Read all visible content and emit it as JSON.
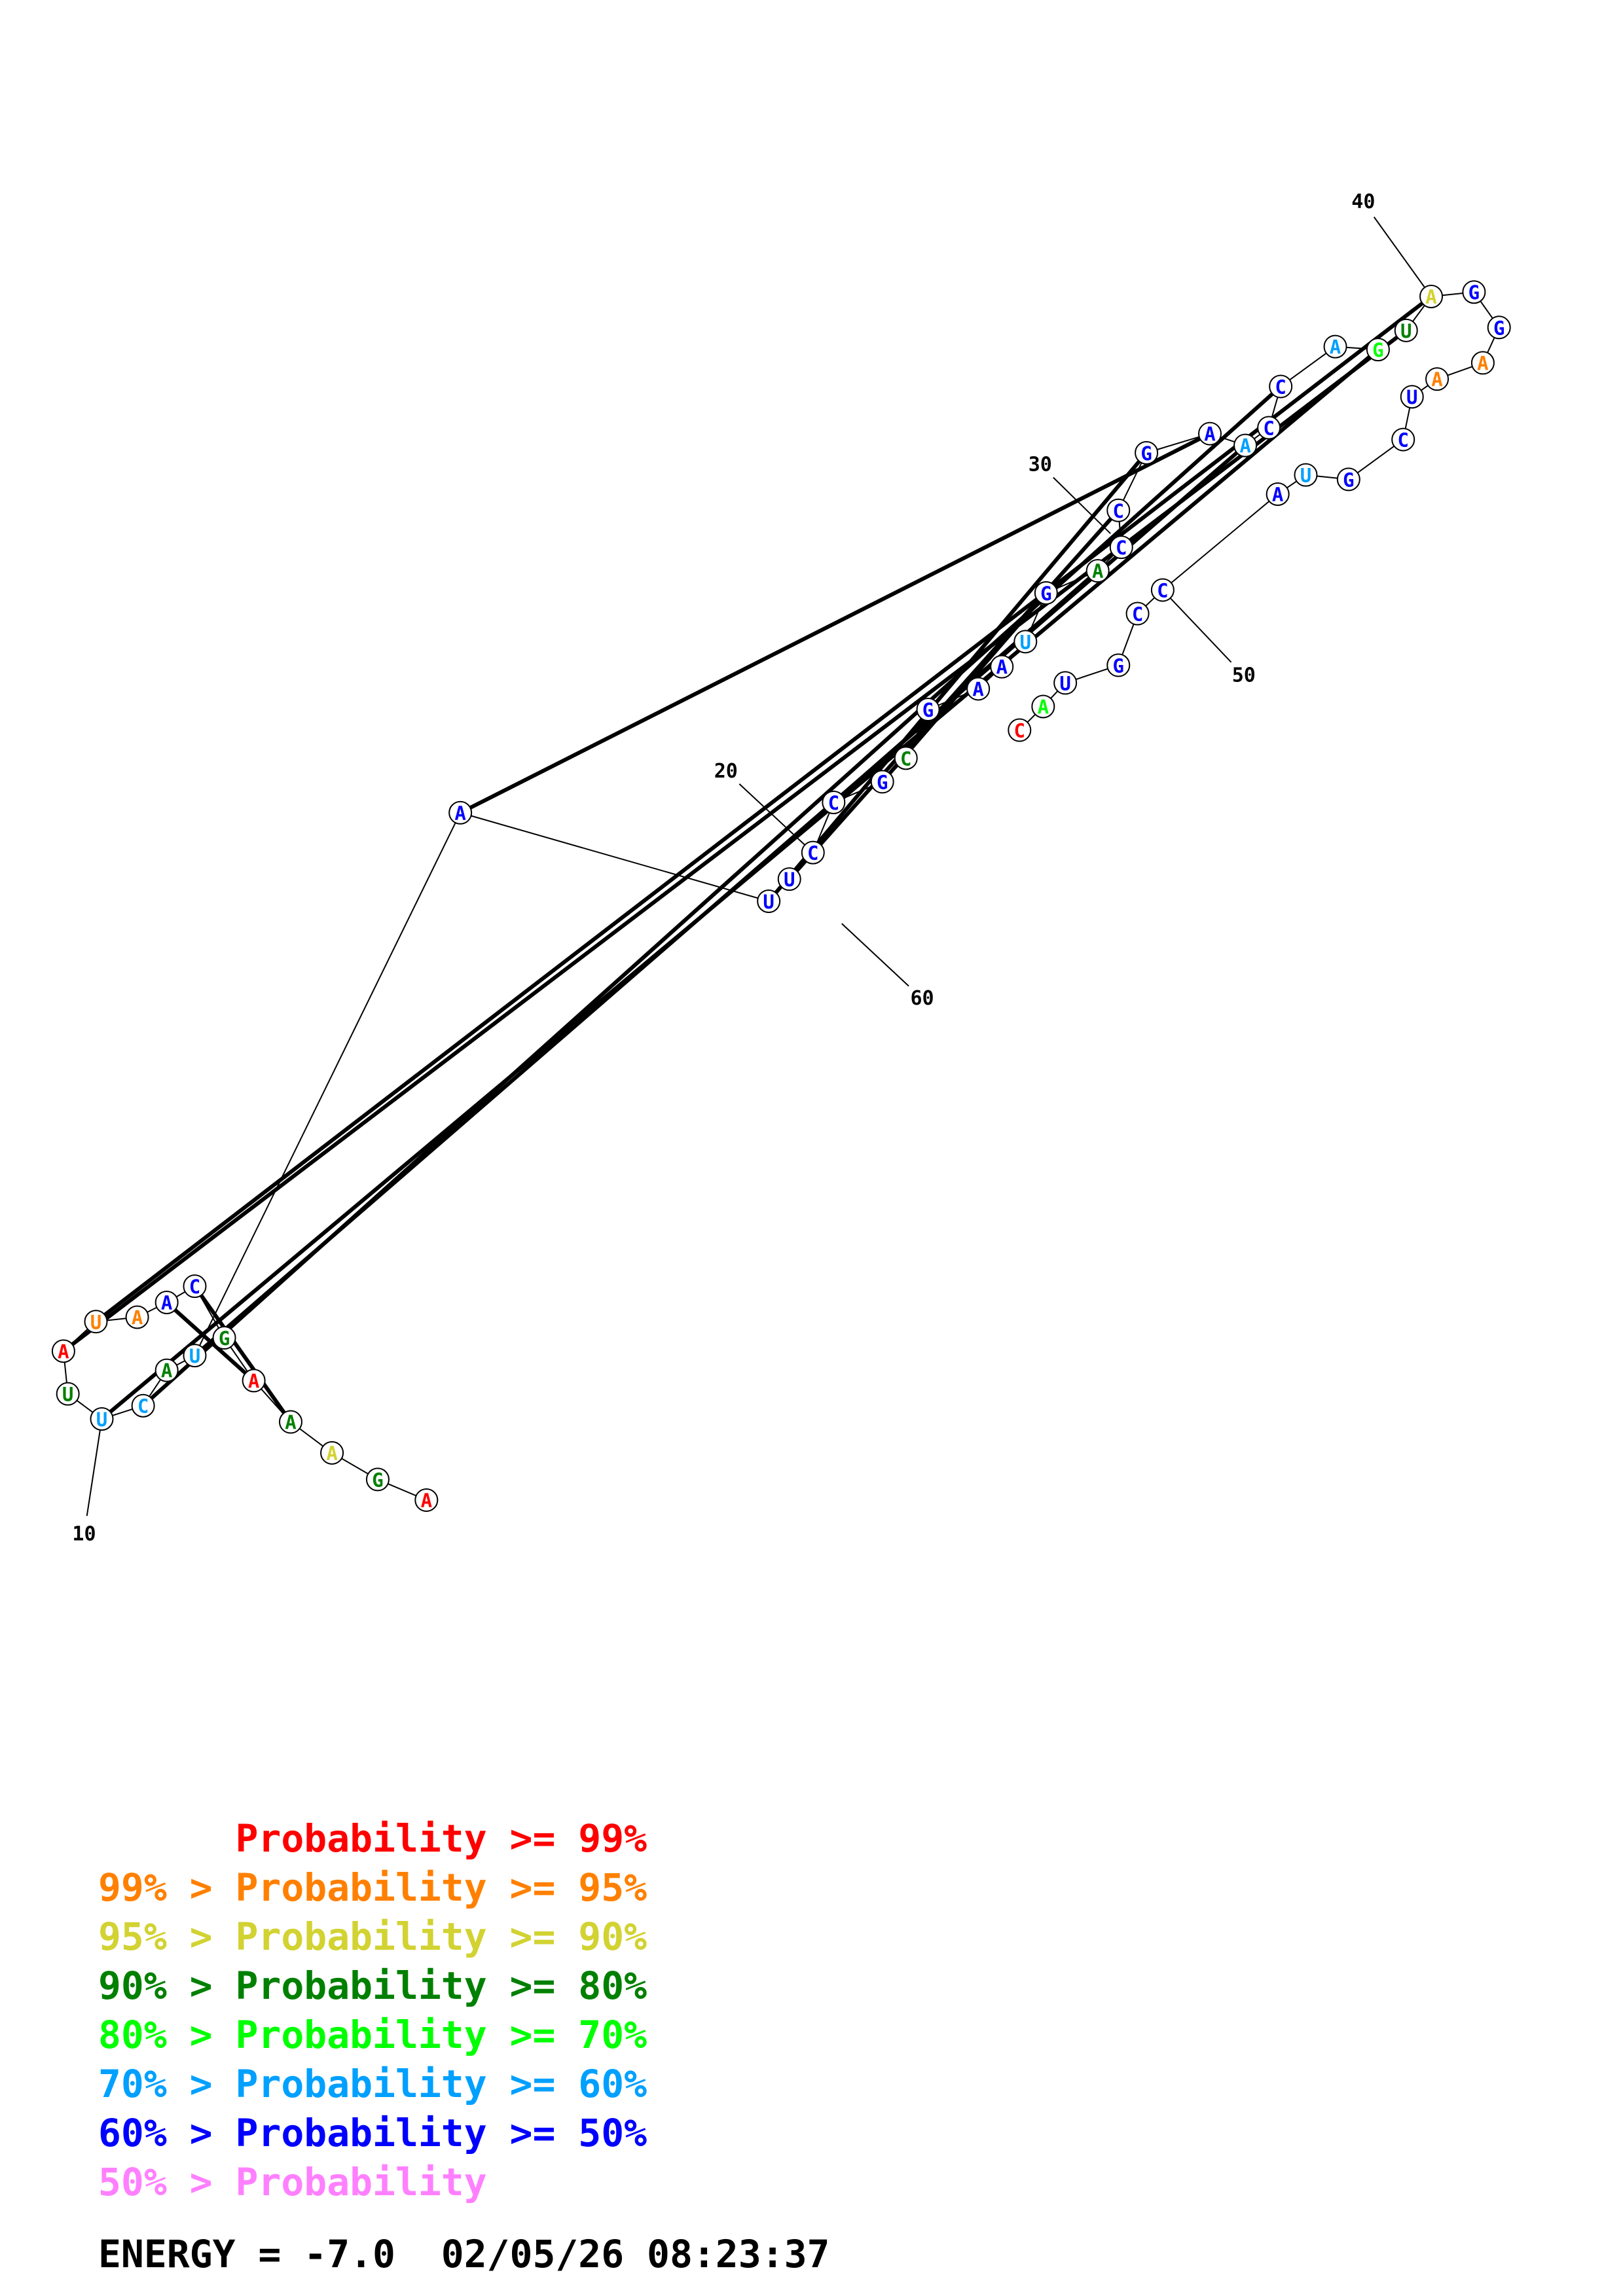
{
  "structure": {
    "sequence": [
      "A",
      "G",
      "A",
      "A",
      "A",
      "G",
      "C",
      "A",
      "A",
      "U",
      "A",
      "U",
      "U",
      "C",
      "A",
      "U",
      "A",
      "U",
      "U",
      "C",
      "C",
      "G",
      "C",
      "G",
      "A",
      "A",
      "U",
      "G",
      "A",
      "C",
      "C",
      "G",
      "A",
      "A",
      "C",
      "C",
      "A",
      "G",
      "U",
      "A",
      "G",
      "G",
      "A",
      "A",
      "U",
      "C",
      "G",
      "U",
      "A",
      "C",
      "C",
      "G",
      "U",
      "A",
      "C"
    ],
    "probability": [
      "p99",
      "p80",
      "p90",
      "p80",
      "p99",
      "p80",
      "p50",
      "p50",
      "p95",
      "p95",
      "p99",
      "p80",
      "p60",
      "p60",
      "p80",
      "p60",
      "p50",
      "p50",
      "p50",
      "p50",
      "p50",
      "p50",
      "p80",
      "p50",
      "p50",
      "p50",
      "p60",
      "p50",
      "p80",
      "p50",
      "p50",
      "p50",
      "p50",
      "p60",
      "p50",
      "p50",
      "p60",
      "p70",
      "p80",
      "p90",
      "p50",
      "p50",
      "p95",
      "p95",
      "p50",
      "p50",
      "p50",
      "p60",
      "p50",
      "p50",
      "p50",
      "p50",
      "p50",
      "p70",
      "p99"
    ],
    "base_pairs": [
      [
        3,
        6
      ],
      [
        4,
        7
      ],
      [
        9,
        39
      ],
      [
        10,
        38
      ],
      [
        12,
        37
      ],
      [
        13,
        35
      ],
      [
        15,
        33
      ],
      [
        16,
        32
      ],
      [
        17,
        31
      ],
      [
        18,
        30
      ],
      [
        20,
        28
      ],
      [
        21,
        27
      ]
    ],
    "position_labels": [
      {
        "text": "10",
        "nt": 0
      },
      {
        "text": "20",
        "nt": 10
      },
      {
        "text": "30",
        "nt": 20
      },
      {
        "text": "40",
        "nt": 30
      },
      {
        "text": "50",
        "nt": 40
      },
      {
        "text": "60",
        "nt": 50
      }
    ]
  },
  "colors": {
    "p99": "#ff0000",
    "p95": "#ff8000",
    "p90": "#d2d232",
    "p80": "#008000",
    "p70": "#00ff00",
    "p60": "#00a0ff",
    "p50": "#0000ff",
    "plow": "#ff80ff",
    "line": "#000000"
  },
  "legend": [
    {
      "prefix": "",
      "text": "Probability >= 99%",
      "level": "p99"
    },
    {
      "prefix": "99% > ",
      "text": "Probability >= 95%",
      "level": "p95"
    },
    {
      "prefix": "95% > ",
      "text": "Probability >= 90%",
      "level": "p90"
    },
    {
      "prefix": "90% > ",
      "text": "Probability >= 80%",
      "level": "p80"
    },
    {
      "prefix": "80% > ",
      "text": "Probability >= 70%",
      "level": "p70"
    },
    {
      "prefix": "70% > ",
      "text": "Probability >= 60%",
      "level": "p60"
    },
    {
      "prefix": "60% > ",
      "text": "Probability >= 50%",
      "level": "p50"
    },
    {
      "prefix": "50% > ",
      "text": "Probability",
      "level": "plow"
    }
  ],
  "footer": {
    "energy": "ENERGY = -7.0  02/05/26 08:23:37"
  }
}
